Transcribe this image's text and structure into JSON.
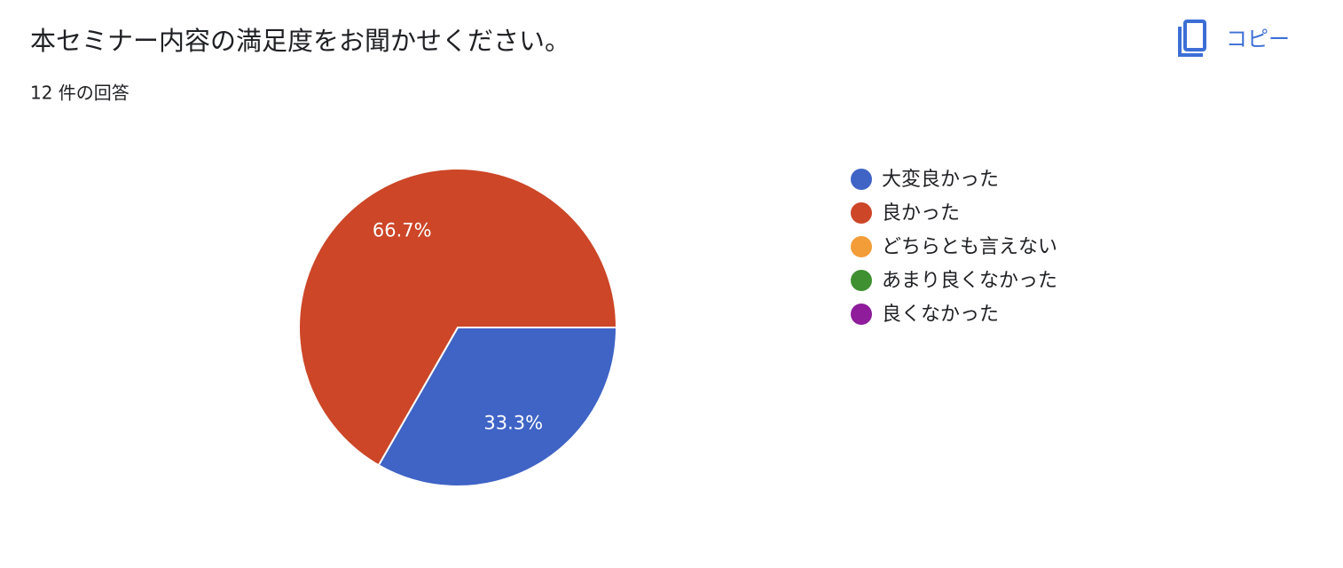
{
  "copy_button": "コピー",
  "chart_data": {
    "type": "pie",
    "title": "本セミナー内容の満足度をお聞かせください。",
    "subtitle": "12 件の回答",
    "categories": [
      "大変良かった",
      "良かった",
      "どちらとも言えない",
      "あまり良くなかった",
      "良くなかった"
    ],
    "values": [
      33.3,
      66.7,
      0,
      0,
      0
    ],
    "value_labels": [
      "33.3%",
      "66.7%",
      null,
      null,
      null
    ],
    "colors": [
      "#3f64c6",
      "#cc4627",
      "#f29d38",
      "#3e9030",
      "#8e1c9b"
    ],
    "legend": "right"
  }
}
